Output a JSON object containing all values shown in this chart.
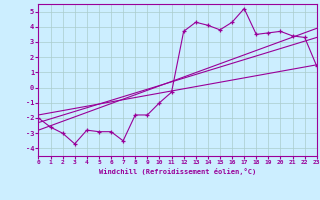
{
  "main_line_x": [
    0,
    1,
    2,
    3,
    4,
    5,
    6,
    7,
    8,
    9,
    10,
    11,
    12,
    13,
    14,
    15,
    16,
    17,
    18,
    19,
    20,
    21,
    22,
    23
  ],
  "main_line_y": [
    -2,
    -2.6,
    -3,
    -3.7,
    -2.8,
    -2.9,
    -2.9,
    -3.5,
    -1.8,
    -1.8,
    -1.0,
    -0.3,
    3.7,
    4.3,
    4.1,
    3.8,
    4.3,
    5.2,
    3.5,
    3.6,
    3.7,
    3.4,
    3.3,
    1.4
  ],
  "reg_line1_x": [
    0,
    23
  ],
  "reg_line1_y": [
    -2.3,
    3.3
  ],
  "reg_line2_x": [
    0,
    23
  ],
  "reg_line2_y": [
    -1.8,
    1.5
  ],
  "reg_line3_x": [
    0,
    23
  ],
  "reg_line3_y": [
    -2.8,
    3.9
  ],
  "line_color": "#990099",
  "bg_color": "#cceeff",
  "grid_color": "#aacccc",
  "xlabel": "Windchill (Refroidissement éolien,°C)",
  "xlim": [
    0,
    23
  ],
  "ylim": [
    -4.5,
    5.5
  ],
  "yticks": [
    -4,
    -3,
    -2,
    -1,
    0,
    1,
    2,
    3,
    4,
    5
  ],
  "xticks": [
    0,
    1,
    2,
    3,
    4,
    5,
    6,
    7,
    8,
    9,
    10,
    11,
    12,
    13,
    14,
    15,
    16,
    17,
    18,
    19,
    20,
    21,
    22,
    23
  ]
}
